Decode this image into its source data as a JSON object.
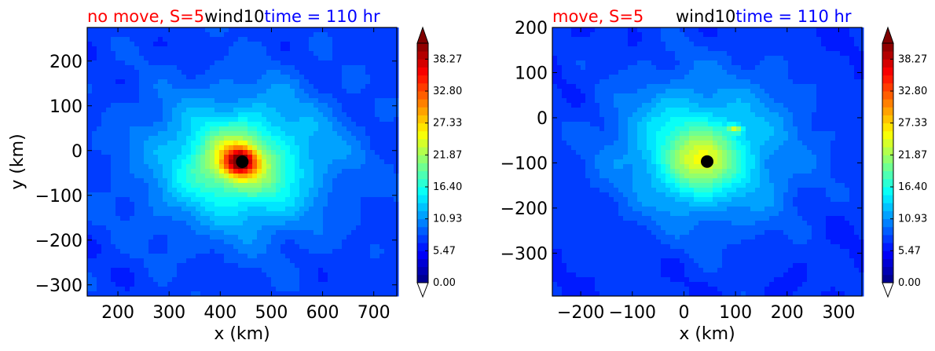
{
  "chart_data": [
    {
      "type": "heatmap",
      "title_parts": [
        {
          "text": "no move, S=5",
          "color": "#ff0000"
        },
        {
          "text": "wind10",
          "color": "#000000"
        },
        {
          "text": "time = 110 hr",
          "color": "#0000ff"
        }
      ],
      "xlabel": "x (km)",
      "ylabel": "y (km)",
      "xlim": [
        140,
        745
      ],
      "ylim": [
        -325,
        275
      ],
      "xticks": [
        200,
        300,
        400,
        500,
        600,
        700
      ],
      "yticks": [
        200,
        100,
        0,
        -100,
        -200,
        -300
      ],
      "field": {
        "background": 7.5,
        "blobs": [
          {
            "x": 440,
            "y": -25,
            "rx": 230,
            "ry": 200,
            "amp": 10
          },
          {
            "x": 440,
            "y": -25,
            "rx": 110,
            "ry": 95,
            "amp": 8
          },
          {
            "x": 440,
            "y": -25,
            "rx": 40,
            "ry": 40,
            "amp": 18
          }
        ],
        "eye": {
          "x": 443,
          "y": -25,
          "r": 10
        }
      }
    },
    {
      "type": "heatmap",
      "title_parts": [
        {
          "text": "move, S=5",
          "color": "#ff0000"
        },
        {
          "text": "wind10",
          "color": "#000000"
        },
        {
          "text": "time = 110 hr",
          "color": "#0000ff"
        }
      ],
      "xlabel": "x (km)",
      "ylabel": "",
      "xlim": [
        -255,
        345
      ],
      "ylim": [
        -395,
        200
      ],
      "xticks": [
        -200,
        -100,
        0,
        100,
        200,
        300
      ],
      "yticks": [
        200,
        100,
        0,
        -100,
        -200,
        -300
      ],
      "field": {
        "background": 7.0,
        "blobs": [
          {
            "x": 40,
            "y": -70,
            "rx": 230,
            "ry": 210,
            "amp": 9
          },
          {
            "x": 25,
            "y": -95,
            "rx": 90,
            "ry": 90,
            "amp": 8
          },
          {
            "x": 100,
            "y": -25,
            "rx": 18,
            "ry": 12,
            "amp": 10
          }
        ],
        "eye": {
          "x": 45,
          "y": -97,
          "r": 11
        }
      }
    }
  ],
  "colorbar": {
    "min": 0.0,
    "max": 41.0,
    "ticks": [
      "0.00",
      "5.47",
      "10.93",
      "16.40",
      "21.87",
      "27.33",
      "32.80",
      "38.27"
    ],
    "colormap": "jet"
  }
}
